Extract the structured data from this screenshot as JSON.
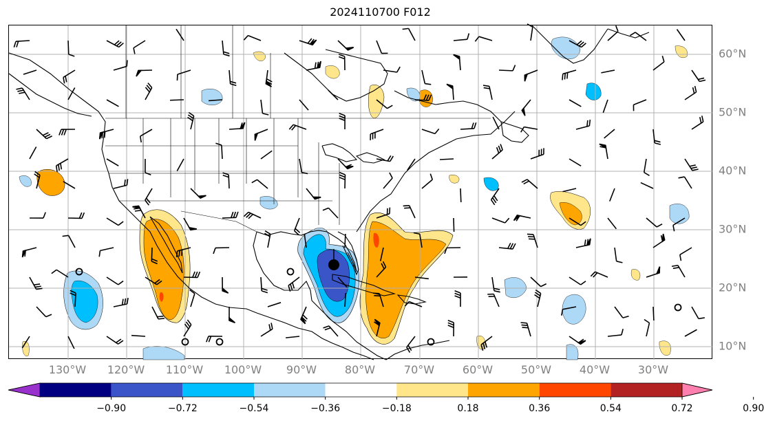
{
  "title": "2024110700 F012",
  "colors": {
    "land_lines": "#000000",
    "grid": "#b0b0b0",
    "tick_labels": "#808080"
  },
  "lon_labels": [
    "130°W",
    "120°W",
    "110°W",
    "100°W",
    "90°W",
    "80°W",
    "70°W",
    "60°W",
    "50°W",
    "40°W",
    "30°W"
  ],
  "lat_labels": [
    "60°N",
    "50°N",
    "40°N",
    "30°N",
    "20°N",
    "10°N"
  ],
  "colorbar": {
    "colors": [
      "#9932cc",
      "#000080",
      "#3a55c8",
      "#00bfff",
      "#add8f6",
      "#ffffff",
      "#ffe68a",
      "#ffa500",
      "#ff4500",
      "#b22222",
      "#ff7fae"
    ],
    "ticks": [
      "−0.90",
      "−0.72",
      "−0.54",
      "−0.36",
      "−0.18",
      "0.18",
      "0.36",
      "0.54",
      "0.72",
      "0.90"
    ],
    "extend": "both"
  },
  "map": {
    "extent_lon": [
      -140,
      -20
    ],
    "extent_lat": [
      8,
      65
    ],
    "field_shading": "contoured anomaly with wind barbs",
    "hurricane_symbol": "filled black dot near Gulf of Mexico"
  }
}
